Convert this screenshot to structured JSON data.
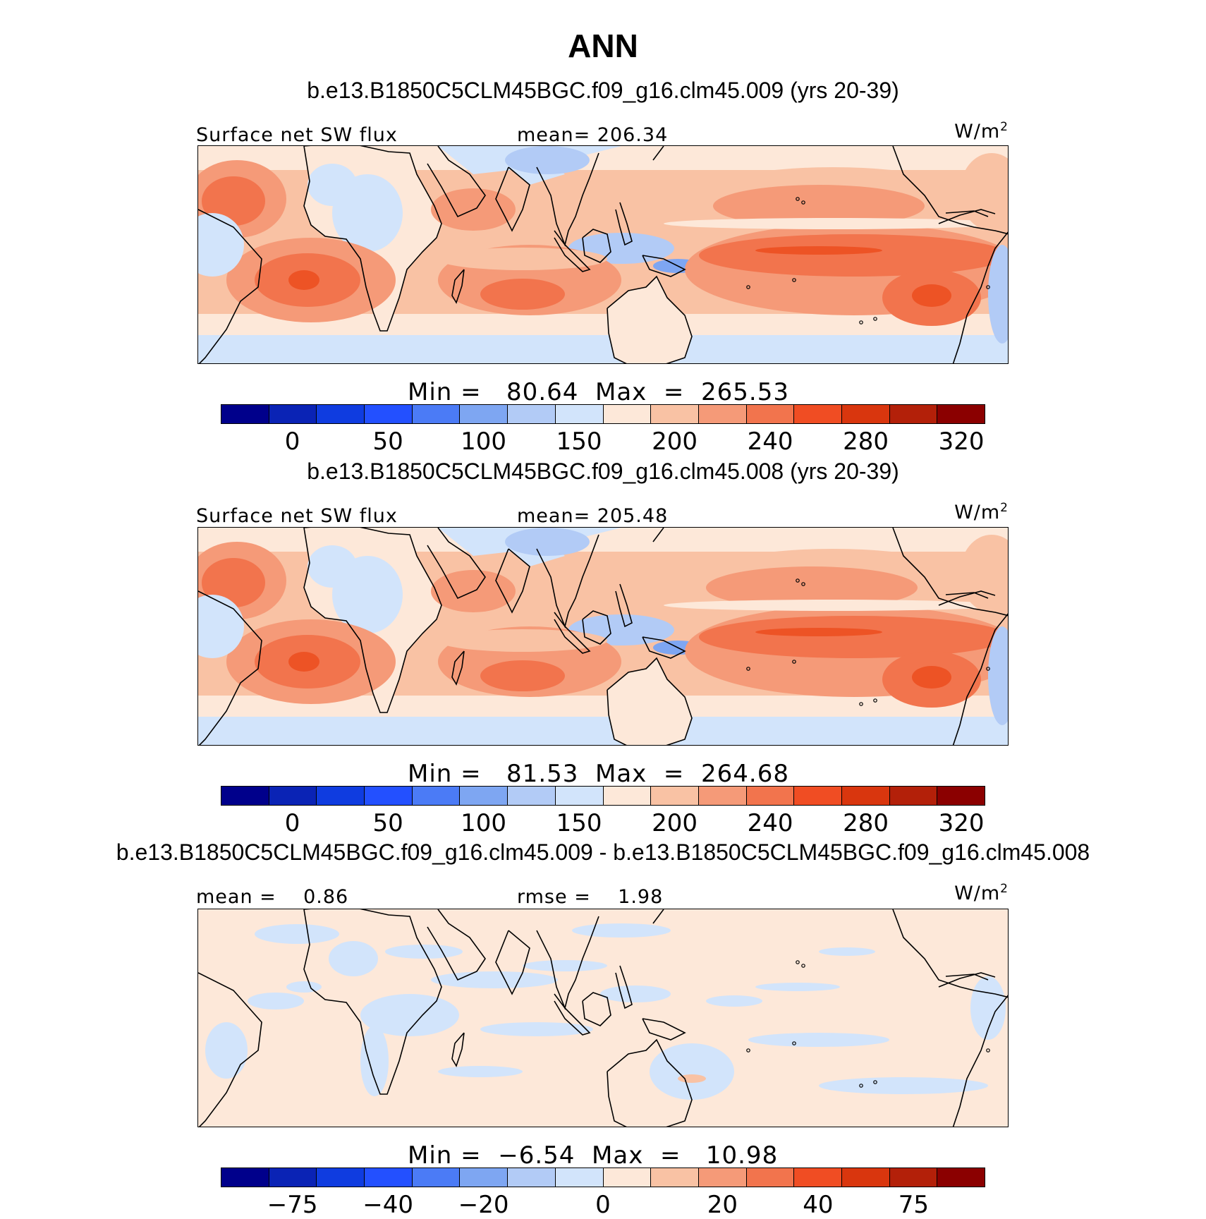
{
  "title": "ANN",
  "panels": [
    {
      "case_title": "b.e13.B1850C5CLM45BGC.f09_g16.clm45.009 (yrs 20-39)",
      "left_label": "Surface net SW flux",
      "center_label": "mean= 206.34",
      "units": "W/m",
      "units_sup": "2",
      "stats": "Min =   80.64  Max  =  265.53",
      "colorbar_ticks": [
        "0",
        "50",
        "100",
        "150",
        "200",
        "240",
        "280",
        "320"
      ]
    },
    {
      "case_title": "b.e13.B1850C5CLM45BGC.f09_g16.clm45.008 (yrs 20-39)",
      "left_label": "Surface net SW flux",
      "center_label": "mean= 205.48",
      "units": "W/m",
      "units_sup": "2",
      "stats": "Min =   81.53  Max  =  264.68",
      "colorbar_ticks": [
        "0",
        "50",
        "100",
        "150",
        "200",
        "240",
        "280",
        "320"
      ]
    },
    {
      "case_title": "b.e13.B1850C5CLM45BGC.f09_g16.clm45.009 - b.e13.B1850C5CLM45BGC.f09_g16.clm45.008",
      "left_label": "mean =    0.86",
      "center_label": "rmse =    1.98",
      "units": "W/m",
      "units_sup": "2",
      "stats": "Min =  −6.54  Max  =   10.98",
      "colorbar_ticks": [
        "−75",
        "−40",
        "−20",
        "0",
        "20",
        "40",
        "75"
      ]
    }
  ],
  "colors": {
    "ocean_pale": "#fde8d9",
    "light_blue": "#d2e4fb",
    "mid_blue": "#b2cbf6",
    "blue": "#7ea6f2",
    "peach": "#f9c2a4",
    "salmon": "#f59a78",
    "orange": "#f2744d",
    "deep_orange": "#ed5325",
    "coast": "#000000"
  },
  "colorbar_colors": [
    "#00008b",
    "#0a23b5",
    "#0f3ce0",
    "#2350ff",
    "#4b7bf6",
    "#7ea6f2",
    "#b2cbf6",
    "#d2e4fb",
    "#fde8d9",
    "#f9c2a4",
    "#f59a78",
    "#f2744d",
    "#f04d23",
    "#d9360e",
    "#b32009",
    "#8b0000"
  ]
}
